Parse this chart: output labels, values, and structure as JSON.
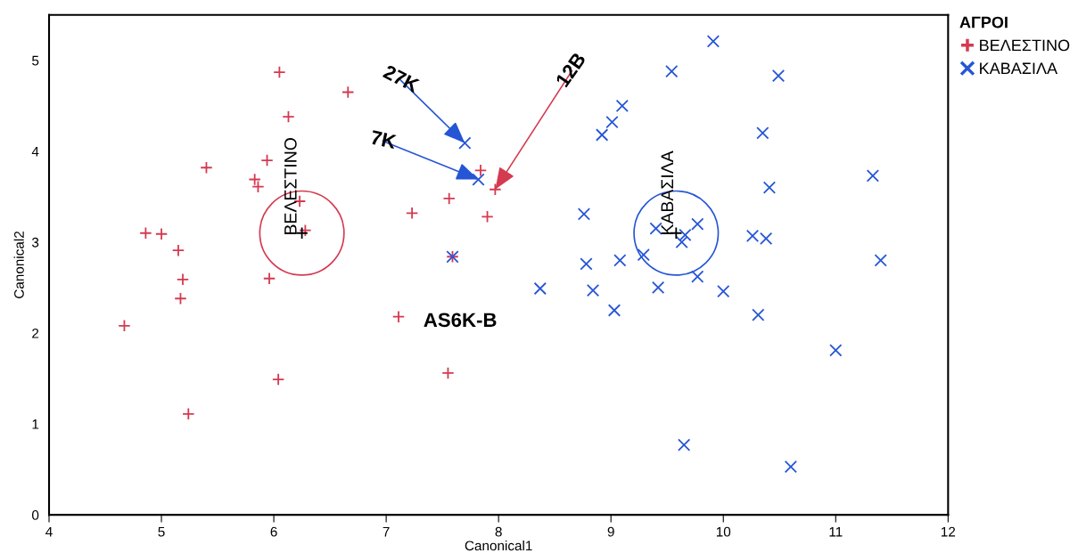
{
  "chart_data": {
    "type": "scatter",
    "xlabel": "Canonical1",
    "ylabel": "Canonical2",
    "legend_title": "ΑΓΡΟΙ",
    "legend": "right",
    "grid": false,
    "xlim": [
      4,
      12
    ],
    "ylim": [
      0,
      5.5
    ],
    "xticks": [
      4,
      5,
      6,
      7,
      8,
      9,
      10,
      11,
      12
    ],
    "yticks": [
      0,
      1,
      2,
      3,
      4,
      5
    ],
    "series": [
      {
        "name": "ΒΕΛΕΣΤΙΝΟ",
        "color": "#d43a50",
        "marker": "plus",
        "x": [
          6.05,
          6.66,
          6.13,
          5.4,
          5.94,
          5.83,
          5.86,
          6.23,
          6.28,
          4.86,
          5.0,
          5.15,
          5.19,
          5.17,
          5.96,
          4.67,
          6.04,
          5.24,
          7.11,
          7.55,
          7.59,
          7.23,
          7.56,
          7.84,
          7.97,
          7.9
        ],
        "values": [
          4.87,
          4.65,
          4.38,
          3.82,
          3.9,
          3.69,
          3.61,
          3.45,
          3.13,
          3.1,
          3.09,
          2.91,
          2.59,
          2.38,
          2.6,
          2.08,
          1.49,
          1.11,
          2.18,
          1.56,
          2.84,
          3.32,
          3.48,
          3.79,
          3.58,
          3.28
        ]
      },
      {
        "name": "ΚΑΒΑΣΙΛΑ",
        "color": "#2656d6",
        "marker": "cross",
        "x": [
          9.91,
          9.54,
          10.49,
          9.1,
          9.01,
          8.92,
          10.35,
          11.33,
          10.41,
          8.76,
          9.4,
          9.77,
          9.66,
          9.63,
          10.26,
          10.38,
          11.4,
          9.29,
          8.78,
          9.08,
          9.77,
          8.37,
          8.84,
          9.42,
          10.0,
          9.03,
          10.31,
          11.0,
          9.65,
          10.6,
          7.7,
          7.82,
          7.59
        ],
        "values": [
          5.21,
          4.88,
          4.83,
          4.5,
          4.32,
          4.18,
          4.2,
          3.73,
          3.6,
          3.31,
          3.15,
          3.2,
          3.08,
          3.0,
          3.07,
          3.04,
          2.8,
          2.86,
          2.76,
          2.8,
          2.62,
          2.49,
          2.47,
          2.5,
          2.46,
          2.25,
          2.2,
          1.81,
          0.77,
          0.53,
          4.09,
          3.69,
          2.84
        ]
      },
      {
        "color": "#000000",
        "marker": "plus",
        "x": [
          6.25,
          9.58
        ],
        "values": [
          3.1,
          3.1
        ]
      }
    ],
    "annotations": [
      {
        "text": "27K",
        "x": 7.7,
        "y": 4.09
      },
      {
        "text": "7K",
        "x": 7.82,
        "y": 3.69
      },
      {
        "text": "12B",
        "x": 7.97,
        "y": 3.58
      },
      {
        "text": "AS6K-B",
        "x": 7.11,
        "y": 2.18
      },
      {
        "text": "ΒΕΛΕΣΤΙΝΟ",
        "x": 6.25,
        "y": 3.1
      },
      {
        "text": "ΚΑΒΑΣΙΛΑ",
        "x": 9.58,
        "y": 3.1
      }
    ]
  }
}
